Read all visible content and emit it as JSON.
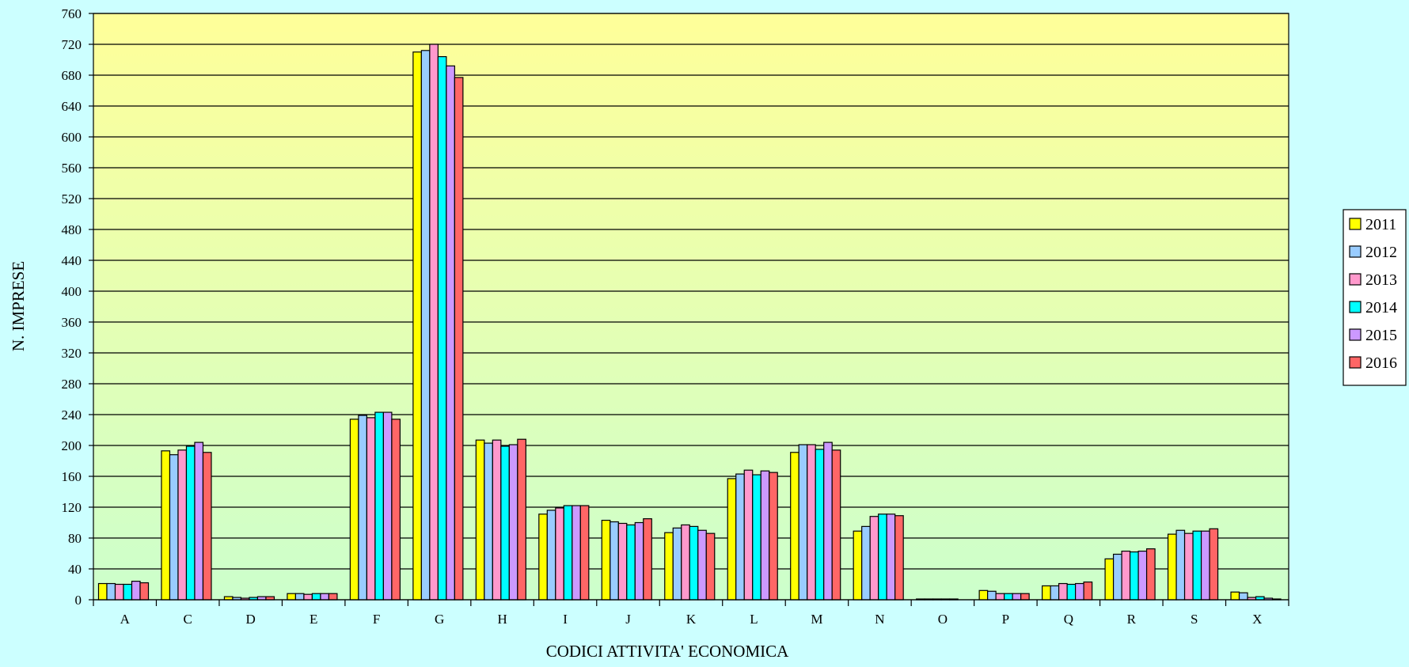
{
  "chart_data": {
    "type": "bar",
    "title": "",
    "xlabel": "CODICI ATTIVITA' ECONOMICA",
    "ylabel": "N. IMPRESE",
    "ylim": [
      0,
      760
    ],
    "ytick_step": 40,
    "grid": true,
    "legend_position": "right",
    "categories": [
      "A",
      "C",
      "D",
      "E",
      "F",
      "G",
      "H",
      "I",
      "J",
      "K",
      "L",
      "M",
      "N",
      "O",
      "P",
      "Q",
      "R",
      "S",
      "X"
    ],
    "series": [
      {
        "name": "2011",
        "color": "#ffff00",
        "values": [
          21,
          193,
          4,
          8,
          234,
          710,
          207,
          111,
          103,
          87,
          157,
          191,
          89,
          1,
          12,
          18,
          53,
          85,
          10
        ]
      },
      {
        "name": "2012",
        "color": "#99ccff",
        "values": [
          21,
          188,
          3,
          8,
          239,
          712,
          203,
          116,
          101,
          93,
          163,
          201,
          95,
          1,
          11,
          18,
          59,
          90,
          9
        ]
      },
      {
        "name": "2013",
        "color": "#ff99cc",
        "values": [
          20,
          194,
          2,
          7,
          236,
          720,
          207,
          119,
          99,
          97,
          168,
          201,
          108,
          1,
          8,
          21,
          63,
          86,
          3
        ]
      },
      {
        "name": "2014",
        "color": "#00ffff",
        "values": [
          20,
          199,
          3,
          8,
          243,
          704,
          199,
          122,
          97,
          95,
          162,
          195,
          111,
          1,
          8,
          20,
          62,
          89,
          4
        ]
      },
      {
        "name": "2015",
        "color": "#cc99ff",
        "values": [
          24,
          204,
          4,
          8,
          243,
          692,
          201,
          122,
          100,
          90,
          167,
          204,
          111,
          1,
          8,
          21,
          63,
          89,
          2
        ]
      },
      {
        "name": "2016",
        "color": "#ff6666",
        "values": [
          22,
          191,
          4,
          8,
          234,
          677,
          208,
          122,
          105,
          86,
          165,
          194,
          109,
          0,
          8,
          23,
          66,
          92,
          1
        ]
      }
    ]
  }
}
